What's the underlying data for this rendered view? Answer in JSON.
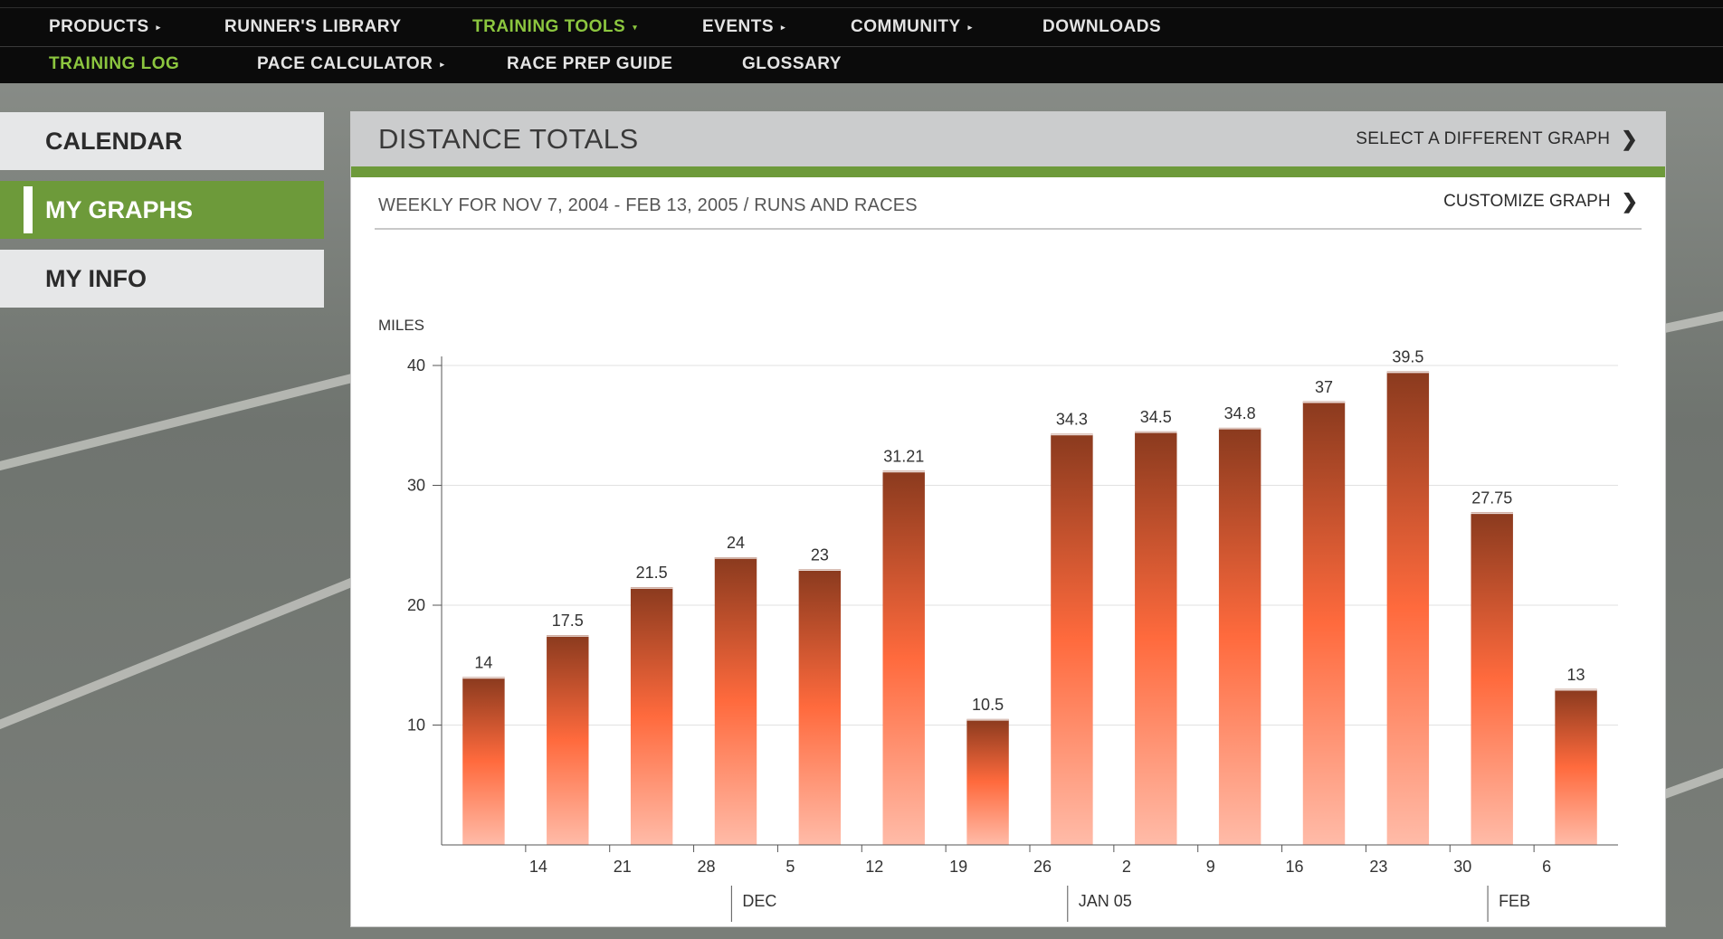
{
  "nav": {
    "top": [
      {
        "label": "PRODUCTS",
        "arrow": true,
        "active": false
      },
      {
        "label": "RUNNER'S LIBRARY",
        "arrow": false,
        "active": false
      },
      {
        "label": "TRAINING TOOLS",
        "arrow": true,
        "active": true
      },
      {
        "label": "EVENTS",
        "arrow": true,
        "active": false
      },
      {
        "label": "COMMUNITY",
        "arrow": true,
        "active": false
      },
      {
        "label": "DOWNLOADS",
        "arrow": false,
        "active": false
      }
    ],
    "sub": [
      {
        "label": "TRAINING LOG",
        "arrow": false,
        "active": true
      },
      {
        "label": "PACE CALCULATOR",
        "arrow": true,
        "active": false
      },
      {
        "label": "RACE PREP GUIDE",
        "arrow": false,
        "active": false
      },
      {
        "label": "GLOSSARY",
        "arrow": false,
        "active": false
      }
    ],
    "arrow_glyph": "▸",
    "down_glyph": "▾"
  },
  "sidebar": {
    "items": [
      {
        "label": "CALENDAR",
        "active": false
      },
      {
        "label": "MY GRAPHS",
        "active": true
      },
      {
        "label": "MY INFO",
        "active": false
      }
    ]
  },
  "panel": {
    "title": "DISTANCE TOTALS",
    "select_link": "SELECT A DIFFERENT GRAPH",
    "subtitle": "WEEKLY FOR NOV 7, 2004 - FEB 13, 2005 / RUNS AND RACES",
    "customize_link": "CUSTOMIZE GRAPH",
    "chevron": "❯"
  },
  "colors": {
    "accent_green": "#6d9a3a",
    "active_nav_text": "#8cc63f",
    "bar_top": "#8a3a1e",
    "bar_mid": "#ff6a3d",
    "bar_bottom": "#ffbba8"
  },
  "chart_data": {
    "type": "bar",
    "ylabel": "MILES",
    "ylim": [
      0,
      40
    ],
    "yticks": [
      10,
      20,
      30,
      40
    ],
    "grid": true,
    "values": [
      14,
      17.5,
      21.5,
      24,
      23,
      31.21,
      10.5,
      34.3,
      34.5,
      34.8,
      37,
      39.5,
      27.75,
      13
    ],
    "data_labels": [
      "14",
      "17.5",
      "21.5",
      "24",
      "23",
      "31.21",
      "10.5",
      "34.3",
      "34.5",
      "34.8",
      "37",
      "39.5",
      "27.75",
      "13"
    ],
    "x_tick_labels": [
      "14",
      "21",
      "28",
      "5",
      "12",
      "19",
      "26",
      "2",
      "9",
      "16",
      "23",
      "30",
      "6"
    ],
    "month_labels": [
      {
        "label": "DEC",
        "after_tick": 3
      },
      {
        "label": "JAN 05",
        "after_tick": 7
      },
      {
        "label": "FEB",
        "after_tick": 12
      }
    ]
  }
}
